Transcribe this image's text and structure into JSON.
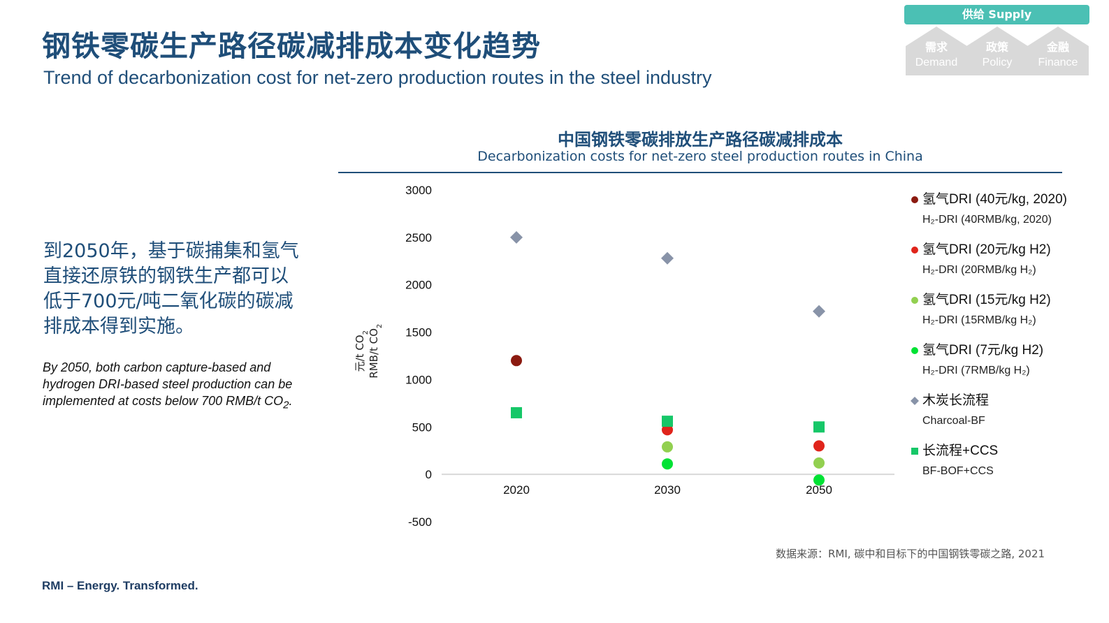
{
  "header": {
    "title_zh": "钢铁零碳生产路径碳减排成本变化趋势",
    "title_en": "Trend of decarbonization cost for net-zero production routes in the steel industry"
  },
  "nav": {
    "supply": "供给 Supply",
    "tabs": [
      {
        "zh": "需求",
        "en": "Demand"
      },
      {
        "zh": "政策",
        "en": "Policy"
      },
      {
        "zh": "金融",
        "en": "Finance"
      }
    ],
    "colors": {
      "active": "#4bc0b4",
      "inactive": "#d9d9d9"
    }
  },
  "body": {
    "text_zh": "到2050年，基于碳捕集和氢气直接还原铁的钢铁生产都可以低于700元/吨二氧化碳的碳减排成本得到实施。",
    "text_en_main": "By 2050, both carbon capture-based and hydrogen DRI-based steel production can be implemented at costs below 700 RMB/t CO",
    "text_en_sub": "2",
    "text_en_end": "."
  },
  "chart_data": {
    "type": "scatter",
    "title": "中国钢铁零碳排放生产路径碳减排成本",
    "subtitle": "Decarbonization costs for net-zero steel production routes in China",
    "ylabel_zh": "元/t CO",
    "ylabel_en": "RMB/t CO",
    "ylabel_sub": "2",
    "categories": [
      "2020",
      "2030",
      "2050"
    ],
    "ylim": [
      -500,
      3000
    ],
    "yticks": [
      "3000",
      "2500",
      "2000",
      "1500",
      "1000",
      "500",
      "0",
      "-500"
    ],
    "grid": false,
    "legend_position": "right",
    "series": [
      {
        "name_zh": "氢气DRI (40元/kg, 2020)",
        "name_en": "H₂-DRI (40RMB/kg, 2020)",
        "marker": "circle",
        "color": "#8b1a10",
        "values": [
          1200,
          null,
          null
        ]
      },
      {
        "name_zh": "氢气DRI (20元/kg H2)",
        "name_en": "H₂-DRI (20RMB/kg H₂)",
        "marker": "circle",
        "color": "#e0241b",
        "values": [
          null,
          470,
          300
        ]
      },
      {
        "name_zh": "氢气DRI (15元/kg H2)",
        "name_en": "H₂-DRI (15RMB/kg H₂)",
        "marker": "circle",
        "color": "#92d050",
        "values": [
          null,
          290,
          120
        ]
      },
      {
        "name_zh": "氢气DRI (7元/kg H2)",
        "name_en": "H₂-DRI (7RMB/kg H₂)",
        "marker": "circle",
        "color": "#00e234",
        "values": [
          null,
          110,
          -60
        ]
      },
      {
        "name_zh": "木炭长流程",
        "name_en": "Charcoal-BF",
        "marker": "diamond",
        "color": "#8893a8",
        "values": [
          2500,
          2280,
          1720
        ]
      },
      {
        "name_zh": "长流程+CCS",
        "name_en": "BF-BOF+CCS",
        "marker": "square",
        "color": "#16c768",
        "values": [
          650,
          560,
          500
        ]
      }
    ]
  },
  "source": "数据来源：RMI, 碳中和目标下的中国钢铁零碳之路, 2021",
  "footer": "RMI – Energy. Transformed."
}
